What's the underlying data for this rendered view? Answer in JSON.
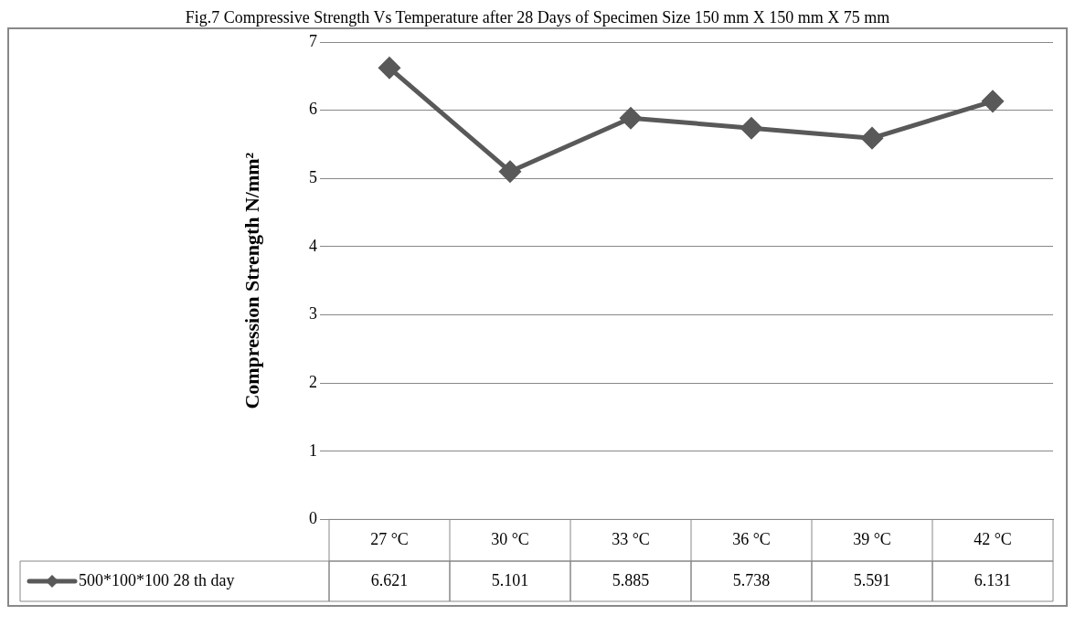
{
  "chart_data": {
    "type": "line",
    "title": "Fig.7 Compressive Strength Vs Temperature after 28 Days of Specimen Size 150 mm X 150 mm X 75 mm",
    "ylabel": "Compression Strength N/mm²",
    "categories": [
      "27 °C",
      "30 °C",
      "33 °C",
      "36 °C",
      "39 °C",
      "42 °C"
    ],
    "series": [
      {
        "name": "500*100*100 28 th day",
        "color": "#595959",
        "values": [
          6.621,
          5.101,
          5.885,
          5.738,
          5.591,
          6.131
        ]
      }
    ],
    "ylim": [
      0,
      7
    ],
    "yticks": [
      0,
      1,
      2,
      3,
      4,
      5,
      6,
      7
    ],
    "grid": "y",
    "marker": "diamond",
    "line_style": "solid",
    "data_labels": true,
    "legend": "bottom left"
  }
}
